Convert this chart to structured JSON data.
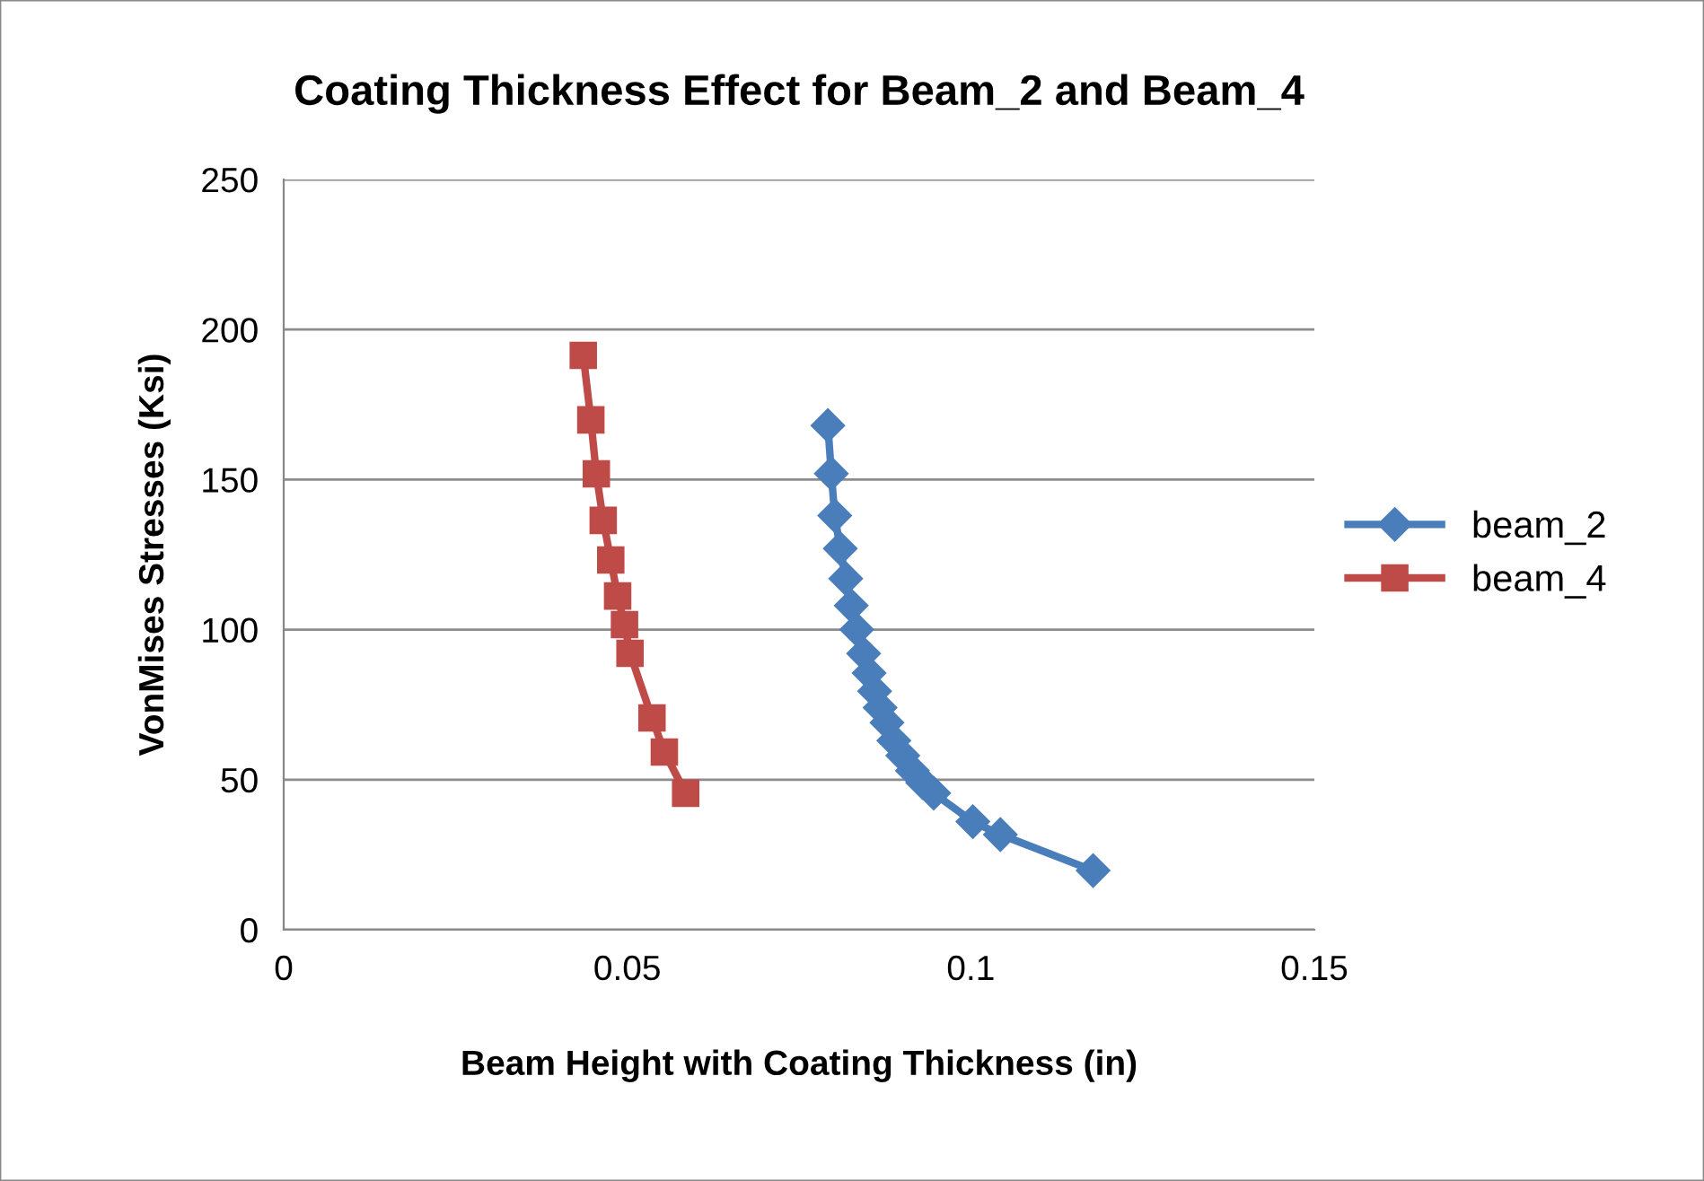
{
  "chart_data": {
    "type": "line",
    "title": "Coating Thickness Effect for Beam_2 and Beam_4",
    "xlabel": "Beam Height with Coating Thickness (in)",
    "ylabel": "VonMises Stresses (Ksi)",
    "xlim": [
      0,
      0.15
    ],
    "xticks": [
      0,
      0.05,
      0.1,
      0.15
    ],
    "ylim": [
      0,
      250
    ],
    "yticks": [
      0,
      50,
      100,
      150,
      200,
      250
    ],
    "grid": "y",
    "legend": "right",
    "series": [
      {
        "name": "beam_2",
        "color": "#4a7ebb",
        "marker": "diamond",
        "x": [
          0.0792,
          0.0797,
          0.0802,
          0.081,
          0.0818,
          0.0826,
          0.0834,
          0.0844,
          0.0852,
          0.086,
          0.0868,
          0.0878,
          0.0888,
          0.0901,
          0.0915,
          0.093,
          0.0946,
          0.1003,
          0.1043,
          0.1178
        ],
        "values": [
          168,
          152,
          138,
          127,
          117,
          108,
          100,
          92,
          85.5,
          79.5,
          74,
          69,
          63,
          58,
          53,
          49,
          45.5,
          36,
          31.7,
          19.7
        ]
      },
      {
        "name": "beam_4",
        "color": "#be4b48",
        "marker": "square",
        "x": [
          0.0436,
          0.0447,
          0.0455,
          0.0465,
          0.0476,
          0.0486,
          0.0496,
          0.0504,
          0.0536,
          0.0554,
          0.0585
        ],
        "values": [
          191.4,
          169.9,
          151.9,
          136.4,
          123.2,
          111.2,
          101.7,
          92.1,
          70.6,
          59.2,
          45.5
        ]
      }
    ]
  }
}
